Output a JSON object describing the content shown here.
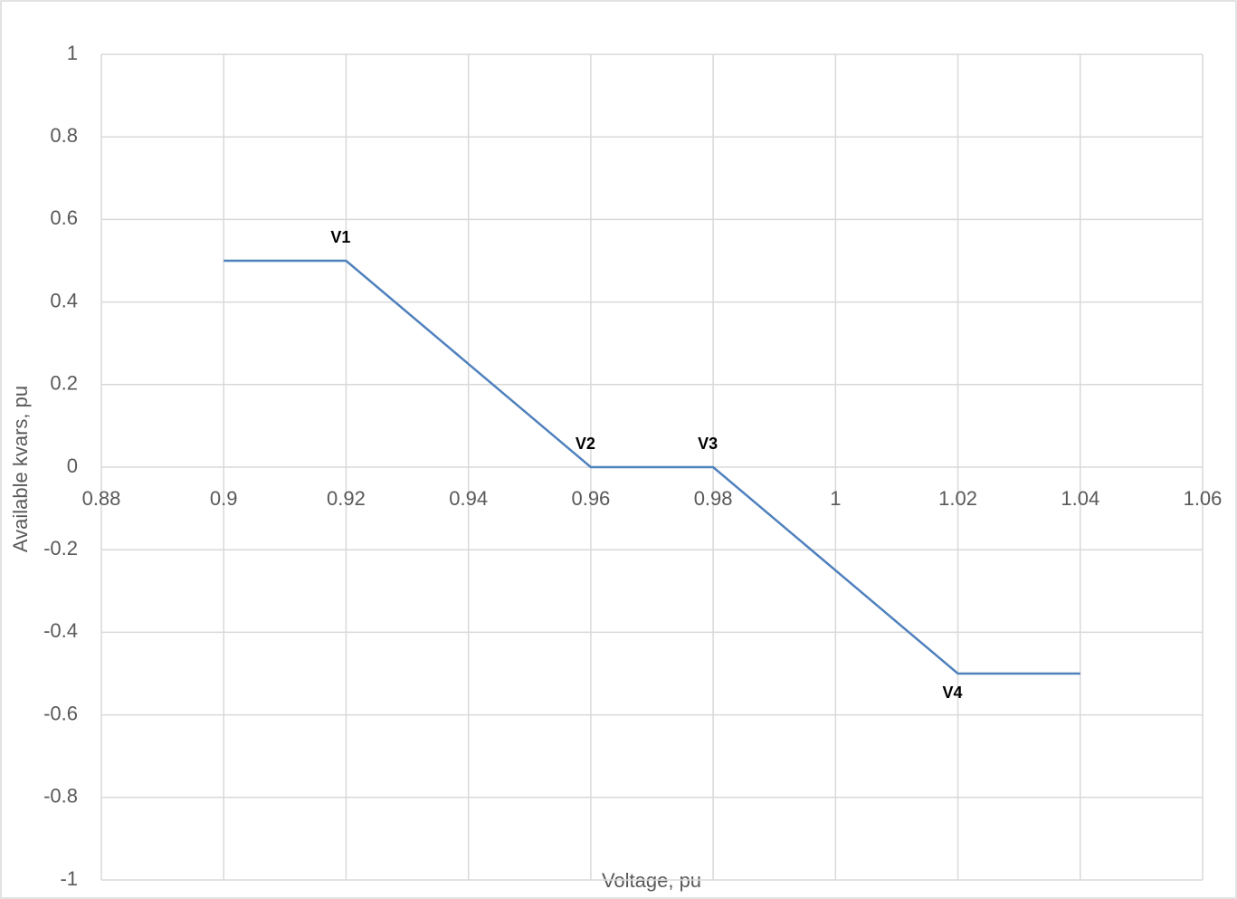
{
  "chart_data": {
    "type": "line",
    "x_label": "Voltage, pu",
    "y_label": "Available kvars, pu",
    "x": [
      0.9,
      0.92,
      0.96,
      0.98,
      1.02,
      1.04
    ],
    "values": [
      0.5,
      0.5,
      0,
      0,
      -0.5,
      -0.5
    ],
    "point_labels": [
      null,
      "V1",
      "V2",
      "V3",
      "V4",
      null
    ],
    "color": "#4f81bd",
    "xlim": [
      0.88,
      1.06
    ],
    "xticks": [
      0.88,
      0.9,
      0.92,
      0.94,
      0.96,
      0.98,
      1,
      1.02,
      1.04,
      1.06
    ],
    "ylim": [
      -1,
      1
    ],
    "yticks": [
      -1,
      -0.8,
      -0.6,
      -0.4,
      -0.2,
      0,
      0.2,
      0.4,
      0.6,
      0.8,
      1
    ],
    "grid": true
  }
}
